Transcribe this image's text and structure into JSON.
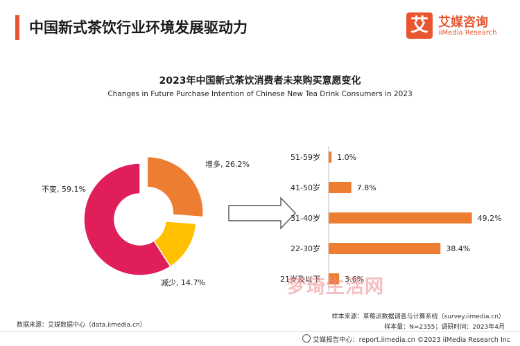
{
  "header": {
    "title": "中国新式茶饮行业环境发展驱动力",
    "logo_mark": "艾",
    "logo_cn": "艾媒咨询",
    "logo_en": "iiMedia Research"
  },
  "colors": {
    "accent": "#e8552f",
    "pie_unchanged": "#e01e5a",
    "pie_increase": "#ed7d31",
    "pie_decrease": "#ffc000",
    "bar": "#ed7d31"
  },
  "chart_data": [
    {
      "type": "pie",
      "title": "2023年中国新式茶饮消费者未来购买意愿变化",
      "subtitle": "Changes in Future Purchase Intention of Chinese New Tea Drink Consumers in 2023",
      "slices": [
        {
          "label": "增多",
          "value": 26.2,
          "display": "增多, 26.2%"
        },
        {
          "label": "减少",
          "value": 14.7,
          "display": "减少, 14.7%"
        },
        {
          "label": "不变",
          "value": 59.1,
          "display": "不变, 59.1%"
        }
      ],
      "donut": true,
      "exploded": "增多"
    },
    {
      "type": "bar",
      "orientation": "horizontal",
      "categories": [
        "51-59岁",
        "41-50岁",
        "31-40岁",
        "22-30岁",
        "21岁及以下"
      ],
      "values": [
        1.0,
        7.8,
        49.2,
        38.4,
        3.6
      ],
      "value_labels": [
        "1.0%",
        "7.8%",
        "49.2%",
        "38.4%",
        "3.6%"
      ],
      "xlim": [
        0,
        50
      ]
    }
  ],
  "watermark": "梦琦生活网",
  "sources": {
    "left": "数据来源：艾媒数据中心（data.iimedia.cn）",
    "right1": "样本来源：草莓派数据调查与计算系统（survey.iimedia.cn）",
    "right2": "样本量：N=2355；调研时间：2023年4月"
  },
  "footer": "艾媒报告中心：report.iimedia.cn    ©2023   iiMedia Research  Inc"
}
